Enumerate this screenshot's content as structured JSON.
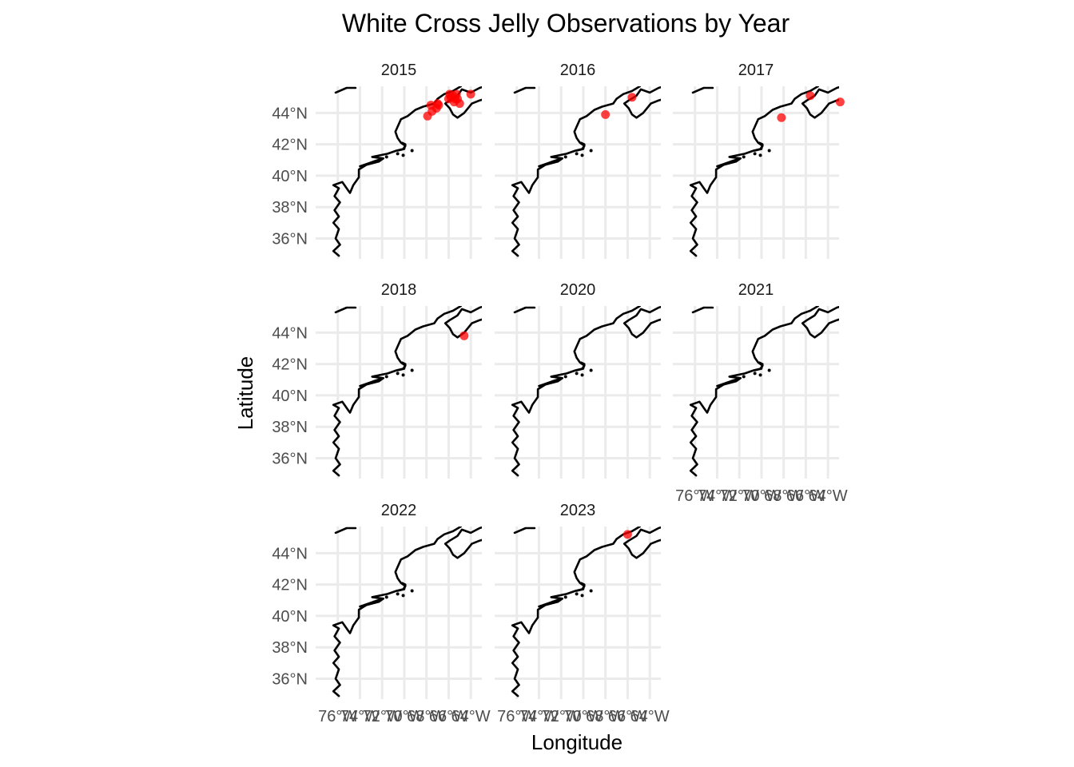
{
  "title": "White Cross Jelly Observations by Year",
  "xlabel": "Longitude",
  "ylabel": "Latitude",
  "colors": {
    "points": "#ff0000",
    "coastline": "#000000",
    "grid": "#ebebeb",
    "background": "#ffffff"
  },
  "x_ticks": [
    "76°W",
    "74°W",
    "72°W",
    "70°W",
    "68°W",
    "66°W",
    "64°W"
  ],
  "y_ticks": [
    "44°N",
    "42°N",
    "40°N",
    "38°N",
    "36°N"
  ],
  "chart_data": {
    "type": "scatter",
    "map": "US/Canada Atlantic coastline, faceted by year",
    "xlim": [
      -78,
      -63
    ],
    "ylim": [
      34.7,
      45.7
    ],
    "grid": true,
    "facets": [
      {
        "year": "2015",
        "points": [
          [
            -67.9,
            43.8
          ],
          [
            -67.5,
            44.1
          ],
          [
            -67.6,
            44.5
          ],
          [
            -67.1,
            44.3
          ],
          [
            -67.0,
            44.6
          ],
          [
            -66.9,
            44.5
          ],
          [
            -66.0,
            44.9
          ],
          [
            -65.8,
            45.0
          ],
          [
            -65.9,
            45.2
          ],
          [
            -65.6,
            45.1
          ],
          [
            -65.4,
            44.9
          ],
          [
            -65.3,
            45.2
          ],
          [
            -65.5,
            44.7
          ],
          [
            -65.2,
            44.9
          ],
          [
            -65.0,
            44.6
          ],
          [
            -64.0,
            45.2
          ]
        ]
      },
      {
        "year": "2016",
        "points": [
          [
            -68.0,
            43.9
          ],
          [
            -65.6,
            45.0
          ]
        ]
      },
      {
        "year": "2017",
        "points": [
          [
            -68.2,
            43.7
          ],
          [
            -65.6,
            45.1
          ],
          [
            -62.9,
            44.7
          ]
        ]
      },
      {
        "year": "2018",
        "points": [
          [
            -64.6,
            43.8
          ]
        ]
      },
      {
        "year": "2020",
        "points": []
      },
      {
        "year": "2021",
        "points": []
      },
      {
        "year": "2022",
        "points": []
      },
      {
        "year": "2023",
        "points": [
          [
            -66.0,
            45.2
          ]
        ]
      }
    ]
  }
}
